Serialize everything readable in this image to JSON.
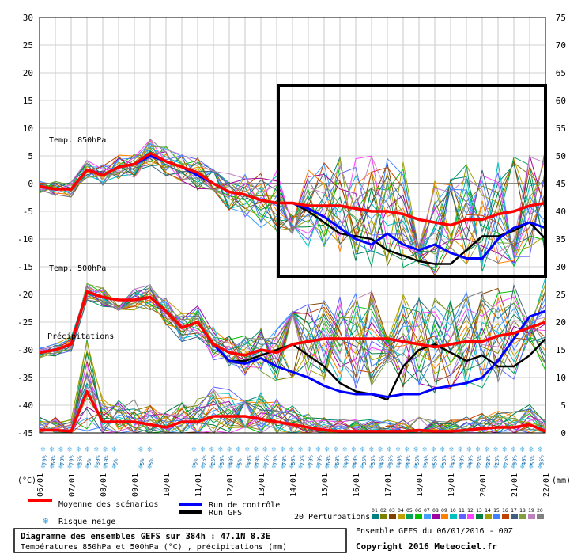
{
  "chart_data": {
    "type": "line",
    "title": "Diagramme des ensembles GEFS sur 384h : 47.1N 8.3E",
    "subtitle": "Températures 850hPa et 500hPa (°C) , précipitations (mm)",
    "ensemble_note": "Ensemble GEFS du 06/01/2016 - 00Z",
    "copyright": "Copyright 2016 Meteociel.fr",
    "left_axis_label": "(°C)",
    "right_axis_label": "(mm)",
    "ylim_left": [
      -45,
      30
    ],
    "ylim_right": [
      0,
      75
    ],
    "left_ticks": [
      "30",
      "25",
      "20",
      "15",
      "10",
      "5",
      "0",
      "-5",
      "-10",
      "-15",
      "-20",
      "-25",
      "-30",
      "-35",
      "-40",
      "-45"
    ],
    "right_ticks": [
      "75",
      "70",
      "65",
      "60",
      "55",
      "50",
      "45",
      "40",
      "35",
      "30",
      "25",
      "20",
      "15",
      "10",
      "5",
      "0"
    ],
    "x_dates": [
      "06/01",
      "07/01",
      "08/01",
      "09/01",
      "10/01",
      "11/01",
      "12/01",
      "13/01",
      "14/01",
      "15/01",
      "16/01",
      "17/01",
      "18/01",
      "19/01",
      "20/01",
      "21/01",
      "22/01"
    ],
    "panel_labels": {
      "t850": "Temp. 850hPa",
      "t500": "Temp. 500hPa",
      "precip": "Précipitations"
    },
    "legend": {
      "mean": "Moyenne des scénarios",
      "control": "Run de contrôle",
      "gfs": "Run GFS",
      "snow": "Risque neige",
      "perturbations": "20 Perturbations"
    },
    "perturbation_ids": [
      "01",
      "02",
      "03",
      "04",
      "05",
      "06",
      "07",
      "08",
      "09",
      "10",
      "11",
      "12",
      "13",
      "14",
      "15",
      "16",
      "17",
      "18",
      "19",
      "20"
    ],
    "snow_risk": [
      "70%",
      "60%",
      "70%",
      "70%",
      "35%",
      "5%",
      "30%",
      "10%",
      "5%",
      "",
      "",
      "5%",
      "5%",
      "",
      "",
      "",
      "",
      "5%",
      "25%",
      "25%",
      "30%",
      "40%",
      "5%",
      "40%",
      "70%",
      "75%",
      "70%",
      "70%",
      "80%",
      "75%",
      "70%",
      "70%",
      "60%",
      "60%",
      "40%",
      "40%",
      "35%",
      "35%",
      "45%",
      "35%",
      "40%",
      "40%",
      "55%",
      "50%",
      "55%",
      "55%",
      "45%",
      "40%",
      "40%",
      "25%",
      "20%",
      "25%",
      "25%",
      "30%",
      "40%",
      "55%",
      "35%"
    ],
    "series": [
      {
        "name": "Moyenne T850",
        "x_days": [
          0,
          0.5,
          1,
          1.5,
          2,
          2.5,
          3,
          3.5,
          4,
          4.5,
          5,
          5.5,
          6,
          6.5,
          7,
          7.5,
          8,
          8.5,
          9,
          9.5,
          10,
          10.5,
          11,
          11.5,
          12,
          12.5,
          13,
          13.5,
          14,
          14.5,
          15,
          15.5,
          16
        ],
        "values": [
          -0.5,
          -1,
          -1,
          2.5,
          1.5,
          3,
          3.5,
          5.5,
          4,
          3,
          2,
          0,
          -1.5,
          -2,
          -3,
          -3.5,
          -3.5,
          -4,
          -4,
          -4,
          -4.5,
          -5,
          -5,
          -5.5,
          -6.5,
          -7,
          -7.5,
          -6.5,
          -6.5,
          -5.5,
          -5,
          -4,
          -3.5
        ]
      },
      {
        "name": "Contrôle T850",
        "x_days": [
          0,
          0.5,
          1,
          1.5,
          2,
          2.5,
          3,
          3.5,
          4,
          4.5,
          5,
          5.5,
          6,
          6.5,
          7,
          7.5,
          8,
          8.5,
          9,
          9.5,
          10,
          10.5,
          11,
          11.5,
          12,
          12.5,
          13,
          13.5,
          14,
          14.5,
          15,
          15.5,
          16
        ],
        "values": [
          -0.5,
          -1,
          -1,
          2.5,
          1.5,
          3,
          3.5,
          5,
          4,
          3,
          1.5,
          0,
          -1.5,
          -2,
          -3,
          -3.5,
          -3.5,
          -4.5,
          -6,
          -8,
          -10,
          -11,
          -9,
          -11,
          -12,
          -11,
          -12.5,
          -13.5,
          -13.5,
          -10,
          -8,
          -7,
          -8
        ]
      },
      {
        "name": "GFS T850",
        "x_days": [
          0,
          0.5,
          1,
          1.5,
          2,
          2.5,
          3,
          3.5,
          4,
          4.5,
          5,
          5.5,
          6,
          6.5,
          7,
          7.5,
          8,
          8.5,
          9,
          9.5,
          10,
          10.5,
          11,
          11.5,
          12,
          12.5,
          13,
          13.5,
          14,
          14.5,
          15,
          15.5,
          16
        ],
        "values": [
          -0.5,
          -1,
          -1,
          2.5,
          1.5,
          3,
          3.5,
          5,
          4,
          3,
          1.5,
          0,
          -1.5,
          -2,
          -3,
          -3.5,
          -3.5,
          -5,
          -7,
          -9,
          -9.5,
          -10,
          -12,
          -13,
          -14,
          -14.5,
          -14.5,
          -12,
          -9.5,
          -9.5,
          -8.5,
          -7,
          -10
        ]
      },
      {
        "name": "Moyenne T500",
        "x_days": [
          0,
          0.5,
          1,
          1.5,
          2,
          2.5,
          3,
          3.5,
          4,
          4.5,
          5,
          5.5,
          6,
          6.5,
          7,
          7.5,
          8,
          8.5,
          9,
          9.5,
          10,
          10.5,
          11,
          11.5,
          12,
          12.5,
          13,
          13.5,
          14,
          14.5,
          15,
          15.5,
          16
        ],
        "values": [
          -30.5,
          -30,
          -29,
          -19.5,
          -20.5,
          -21,
          -21,
          -20.5,
          -23,
          -26,
          -25,
          -29,
          -30.5,
          -31,
          -30,
          -30.5,
          -29,
          -28.5,
          -28,
          -28,
          -28,
          -28,
          -28,
          -28.5,
          -29,
          -29.5,
          -29,
          -28.5,
          -28.5,
          -27.5,
          -27,
          -26,
          -25
        ]
      },
      {
        "name": "Contrôle T500",
        "x_days": [
          0,
          0.5,
          1,
          1.5,
          2,
          2.5,
          3,
          3.5,
          4,
          4.5,
          5,
          5.5,
          6,
          6.5,
          7,
          7.5,
          8,
          8.5,
          9,
          9.5,
          10,
          10.5,
          11,
          11.5,
          12,
          12.5,
          13,
          13.5,
          14,
          14.5,
          15,
          15.5,
          16
        ],
        "values": [
          -30.5,
          -30,
          -29,
          -19.5,
          -20.5,
          -21,
          -21,
          -20.5,
          -23,
          -26,
          -25,
          -29,
          -32,
          -32.5,
          -31.5,
          -33,
          -34,
          -35,
          -36.5,
          -37.5,
          -38,
          -38,
          -38.5,
          -38,
          -38,
          -37,
          -36.5,
          -36,
          -35,
          -32,
          -28,
          -24,
          -23
        ]
      },
      {
        "name": "GFS T500",
        "x_days": [
          0,
          0.5,
          1,
          1.5,
          2,
          2.5,
          3,
          3.5,
          4,
          4.5,
          5,
          5.5,
          6,
          6.5,
          7,
          7.5,
          8,
          8.5,
          9,
          9.5,
          10,
          10.5,
          11,
          11.5,
          12,
          12.5,
          13,
          13.5,
          14,
          14.5,
          15,
          15.5,
          16
        ],
        "values": [
          -30.5,
          -30,
          -29,
          -19.5,
          -20.5,
          -21,
          -21,
          -20.5,
          -23,
          -26,
          -25,
          -29,
          -32,
          -32,
          -31,
          -30,
          -29,
          -31,
          -33,
          -36,
          -37.5,
          -38,
          -39,
          -33,
          -30,
          -29,
          -30.5,
          -32,
          -31,
          -33,
          -33,
          -31,
          -28
        ]
      },
      {
        "name": "Moyenne précipitations (mm)",
        "x_days": [
          0,
          0.5,
          1,
          1.5,
          2,
          2.5,
          3,
          3.5,
          4,
          4.5,
          5,
          5.5,
          6,
          6.5,
          7,
          7.5,
          8,
          8.5,
          9,
          9.5,
          10,
          10.5,
          11,
          11.5,
          12,
          12.5,
          13,
          13.5,
          14,
          14.5,
          15,
          15.5,
          16
        ],
        "values": [
          0.5,
          0.5,
          0.3,
          7.5,
          2,
          2,
          2,
          1.5,
          1,
          2,
          2,
          3,
          3,
          3,
          2.5,
          2,
          1.5,
          1,
          0.5,
          0.3,
          0.3,
          0.3,
          0.3,
          0.3,
          0.5,
          0.3,
          0.3,
          0.5,
          0.8,
          1,
          1,
          1.5,
          0.3
        ]
      }
    ]
  }
}
